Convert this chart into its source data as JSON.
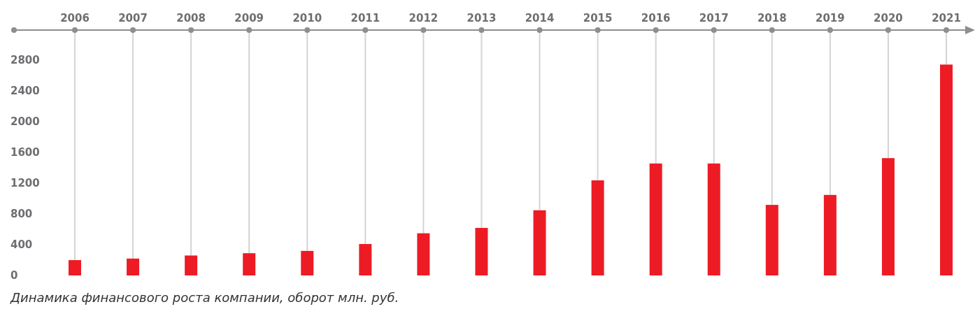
{
  "chart_data": {
    "type": "bar",
    "annotations": [
      "Динамика финансового роста компании, оборот млн. руб."
    ],
    "categories": [
      "2006",
      "2007",
      "2008",
      "2009",
      "2010",
      "2011",
      "2012",
      "2013",
      "2014",
      "2015",
      "2016",
      "2017",
      "2018",
      "2019",
      "2020",
      "2021"
    ],
    "values": [
      200,
      220,
      260,
      290,
      320,
      410,
      550,
      620,
      850,
      1240,
      1460,
      1460,
      920,
      1050,
      1530,
      2750
    ],
    "color": "#ed1c24",
    "ylim": [
      0,
      3200
    ],
    "yticks": [
      0,
      400,
      800,
      1200,
      1600,
      2000,
      2400,
      2800
    ],
    "grid": "x"
  }
}
